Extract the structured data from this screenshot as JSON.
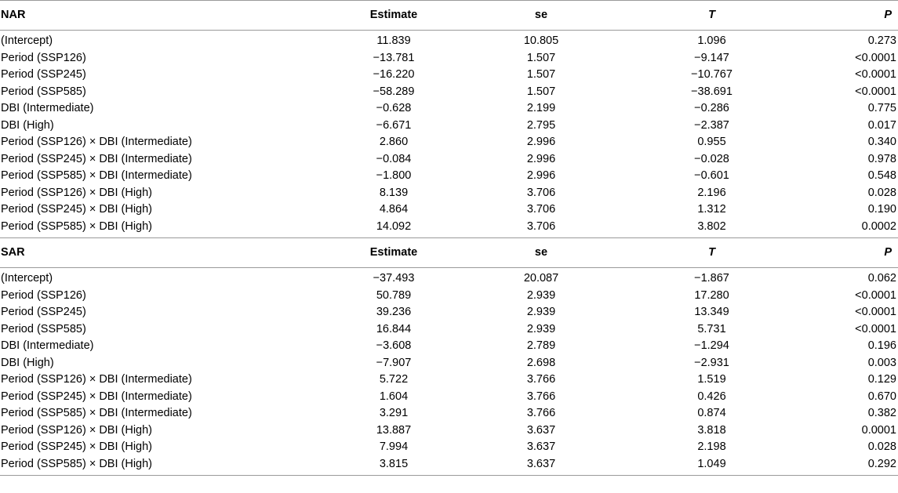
{
  "columns": {
    "estimate": "Estimate",
    "se": "se",
    "t": "T",
    "p": "P"
  },
  "sections": [
    {
      "name": "NAR",
      "rows": [
        {
          "label": "(Intercept)",
          "estimate": "11.839",
          "se": "10.805",
          "t": "1.096",
          "p": "0.273"
        },
        {
          "label": "Period (SSP126)",
          "estimate": "−13.781",
          "se": "1.507",
          "t": "−9.147",
          "p": "<0.0001"
        },
        {
          "label": "Period (SSP245)",
          "estimate": "−16.220",
          "se": "1.507",
          "t": "−10.767",
          "p": "<0.0001"
        },
        {
          "label": "Period (SSP585)",
          "estimate": "−58.289",
          "se": "1.507",
          "t": "−38.691",
          "p": "<0.0001"
        },
        {
          "label": "DBI (Intermediate)",
          "estimate": "−0.628",
          "se": "2.199",
          "t": "−0.286",
          "p": "0.775"
        },
        {
          "label": "DBI (High)",
          "estimate": "−6.671",
          "se": "2.795",
          "t": "−2.387",
          "p": "0.017"
        },
        {
          "label": "Period (SSP126) × DBI (Intermediate)",
          "estimate": "2.860",
          "se": "2.996",
          "t": "0.955",
          "p": "0.340"
        },
        {
          "label": "Period (SSP245) × DBI (Intermediate)",
          "estimate": "−0.084",
          "se": "2.996",
          "t": "−0.028",
          "p": "0.978"
        },
        {
          "label": "Period (SSP585) × DBI (Intermediate)",
          "estimate": "−1.800",
          "se": "2.996",
          "t": "−0.601",
          "p": "0.548"
        },
        {
          "label": "Period (SSP126) × DBI (High)",
          "estimate": "8.139",
          "se": "3.706",
          "t": "2.196",
          "p": "0.028"
        },
        {
          "label": "Period (SSP245) × DBI (High)",
          "estimate": "4.864",
          "se": "3.706",
          "t": "1.312",
          "p": "0.190"
        },
        {
          "label": "Period (SSP585) × DBI (High)",
          "estimate": "14.092",
          "se": "3.706",
          "t": "3.802",
          "p": "0.0002"
        }
      ]
    },
    {
      "name": "SAR",
      "rows": [
        {
          "label": "(Intercept)",
          "estimate": "−37.493",
          "se": "20.087",
          "t": "−1.867",
          "p": "0.062"
        },
        {
          "label": "Period (SSP126)",
          "estimate": "50.789",
          "se": "2.939",
          "t": "17.280",
          "p": "<0.0001"
        },
        {
          "label": "Period (SSP245)",
          "estimate": "39.236",
          "se": "2.939",
          "t": "13.349",
          "p": "<0.0001"
        },
        {
          "label": "Period (SSP585)",
          "estimate": "16.844",
          "se": "2.939",
          "t": "5.731",
          "p": "<0.0001"
        },
        {
          "label": "DBI (Intermediate)",
          "estimate": "−3.608",
          "se": "2.789",
          "t": "−1.294",
          "p": "0.196"
        },
        {
          "label": "DBI (High)",
          "estimate": "−7.907",
          "se": "2.698",
          "t": "−2.931",
          "p": "0.003"
        },
        {
          "label": "Period (SSP126) × DBI (Intermediate)",
          "estimate": "5.722",
          "se": "3.766",
          "t": "1.519",
          "p": "0.129"
        },
        {
          "label": "Period (SSP245) × DBI (Intermediate)",
          "estimate": "1.604",
          "se": "3.766",
          "t": "0.426",
          "p": "0.670"
        },
        {
          "label": "Period (SSP585) × DBI (Intermediate)",
          "estimate": "3.291",
          "se": "3.766",
          "t": "0.874",
          "p": "0.382"
        },
        {
          "label": "Period (SSP126) × DBI (High)",
          "estimate": "13.887",
          "se": "3.637",
          "t": "3.818",
          "p": "0.0001"
        },
        {
          "label": "Period (SSP245) × DBI (High)",
          "estimate": "7.994",
          "se": "3.637",
          "t": "2.198",
          "p": "0.028"
        },
        {
          "label": "Period (SSP585) × DBI (High)",
          "estimate": "3.815",
          "se": "3.637",
          "t": "1.049",
          "p": "0.292"
        }
      ]
    }
  ]
}
